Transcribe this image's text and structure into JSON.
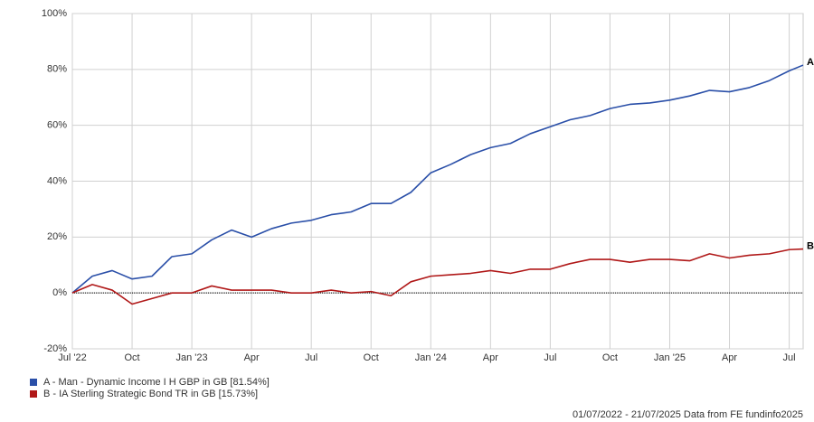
{
  "chart_data": {
    "type": "line",
    "x": [
      0,
      1,
      2,
      3,
      4,
      5,
      6,
      7,
      8,
      9,
      10,
      11,
      12,
      13,
      14,
      15,
      16,
      17,
      18,
      19,
      20,
      21,
      22,
      23,
      24,
      25,
      26,
      27,
      28,
      29,
      30,
      31,
      32,
      33,
      34,
      35,
      36,
      36.7
    ],
    "xlim": [
      0,
      36.7
    ],
    "xticks": [
      {
        "value": 0,
        "label": "Jul '22"
      },
      {
        "value": 3,
        "label": "Oct"
      },
      {
        "value": 6,
        "label": "Jan '23"
      },
      {
        "value": 9,
        "label": "Apr"
      },
      {
        "value": 12,
        "label": "Jul"
      },
      {
        "value": 15,
        "label": "Oct"
      },
      {
        "value": 18,
        "label": "Jan '24"
      },
      {
        "value": 21,
        "label": "Apr"
      },
      {
        "value": 24,
        "label": "Jul"
      },
      {
        "value": 27,
        "label": "Oct"
      },
      {
        "value": 30,
        "label": "Jan '25"
      },
      {
        "value": 33,
        "label": "Apr"
      },
      {
        "value": 36,
        "label": "Jul"
      }
    ],
    "ylim": [
      -20,
      100
    ],
    "yticks": [
      {
        "value": -20,
        "label": "-20%"
      },
      {
        "value": 0,
        "label": "0%"
      },
      {
        "value": 20,
        "label": "20%"
      },
      {
        "value": 40,
        "label": "40%"
      },
      {
        "value": 60,
        "label": "60%"
      },
      {
        "value": 80,
        "label": "80%"
      },
      {
        "value": 100,
        "label": "100%"
      }
    ],
    "grid": true,
    "series": [
      {
        "name": "A - Man - Dynamic Income I H GBP in GB [81.54%]",
        "end_label": "A",
        "color": "#2a4fa8",
        "values": [
          0,
          6,
          8,
          5,
          6,
          13,
          14,
          19,
          22.5,
          20,
          23,
          25,
          26,
          28,
          29,
          32,
          32,
          36,
          43,
          46,
          49.5,
          52,
          53.5,
          57,
          59.5,
          62,
          63.5,
          66,
          67.5,
          68,
          69,
          70.5,
          72.5,
          72,
          73.5,
          76,
          79.5,
          81.54
        ]
      },
      {
        "name": "B - IA Sterling Strategic Bond TR in GB [15.73%]",
        "end_label": "B",
        "color": "#b01818",
        "values": [
          0,
          3,
          1,
          -4,
          -2,
          0,
          0,
          2.5,
          1,
          1,
          1,
          0,
          0,
          1,
          0,
          0.5,
          -1,
          4,
          6,
          6.5,
          7,
          8,
          7,
          8.5,
          8.5,
          10.5,
          12,
          12,
          11,
          12,
          12,
          11.5,
          14,
          12.5,
          13.5,
          14,
          15.5,
          15.73
        ]
      }
    ],
    "footer": "01/07/2022 - 21/07/2025 Data from FE fundinfo2025"
  }
}
